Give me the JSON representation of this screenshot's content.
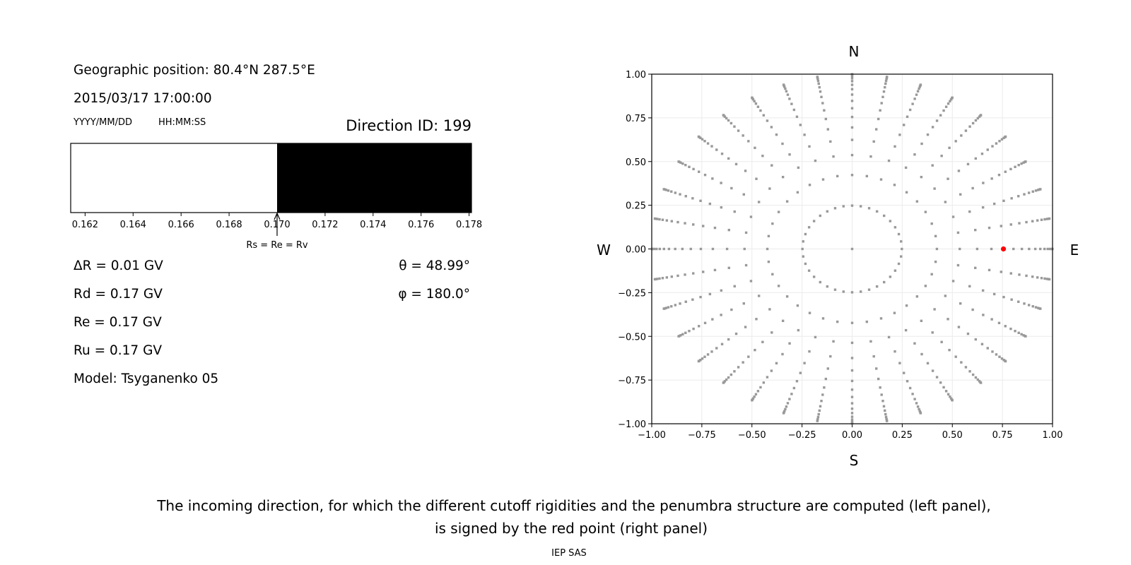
{
  "left_panel": {
    "geo_position": "Geographic position: 80.4°N 287.5°E",
    "datetime": "2015/03/17 17:00:00",
    "date_format": "YYYY/MM/DD",
    "time_format": "HH:MM:SS",
    "direction_id": "Direction ID: 199",
    "delta_r": "ΔR = 0.01 GV",
    "rd": "Rd = 0.17 GV",
    "re": "Re = 0.17 GV",
    "ru": "Ru = 0.17 GV",
    "model": "Model: Tsyganenko 05",
    "theta": "θ = 48.99°",
    "phi": "φ = 180.0°"
  },
  "caption": {
    "line1": "The incoming direction, for which the different cutoff rigidities and the penumbra structure are computed (left panel),",
    "line2": "is signed by the red point (right panel)",
    "credit": "IEP SAS"
  },
  "chart_data": [
    {
      "type": "bar",
      "xlim": [
        0.1614,
        0.1781
      ],
      "x_ticks": [
        "0.162",
        "0.164",
        "0.166",
        "0.168",
        "0.170",
        "0.172",
        "0.174",
        "0.176",
        "0.178"
      ],
      "segments": [
        {
          "from": 0.1614,
          "to": 0.17,
          "color": "#ffffff"
        },
        {
          "from": 0.17,
          "to": 0.1781,
          "color": "#000000"
        }
      ],
      "annotation": {
        "text": "Rs = Re = Rv",
        "x": 0.17
      },
      "grid": false
    },
    {
      "type": "scatter",
      "xlim": [
        -1,
        1
      ],
      "ylim": [
        -1,
        1
      ],
      "x_ticks": [
        "−1.00",
        "−0.75",
        "−0.50",
        "−0.25",
        "0.00",
        "0.25",
        "0.50",
        "0.75",
        "1.00"
      ],
      "y_ticks": [
        "−1.00",
        "−0.75",
        "−0.50",
        "−0.25",
        "0.00",
        "0.25",
        "0.50",
        "0.75",
        "1.00"
      ],
      "grid": true,
      "direction_labels": {
        "top": "N",
        "bottom": "S",
        "left": "W",
        "right": "E"
      },
      "point_color": "#999999",
      "highlight_color": "#ff0000",
      "center_point": {
        "x": 0,
        "y": 0
      },
      "ring_radii": [
        0.248,
        0.423,
        0.537,
        0.624,
        0.695,
        0.755,
        0.805,
        0.847,
        0.883,
        0.914,
        0.939,
        0.96,
        0.976,
        0.988,
        0.996,
        0.9995
      ],
      "azimuths_deg": [
        0,
        10,
        20,
        30,
        40,
        50,
        60,
        70,
        80,
        90,
        100,
        110,
        120,
        130,
        140,
        150,
        160,
        170,
        180,
        190,
        200,
        210,
        220,
        230,
        240,
        250,
        260,
        270,
        280,
        290,
        300,
        310,
        320,
        330,
        340,
        350
      ],
      "highlight_point": {
        "x": 0.755,
        "y": 0.0
      }
    }
  ]
}
